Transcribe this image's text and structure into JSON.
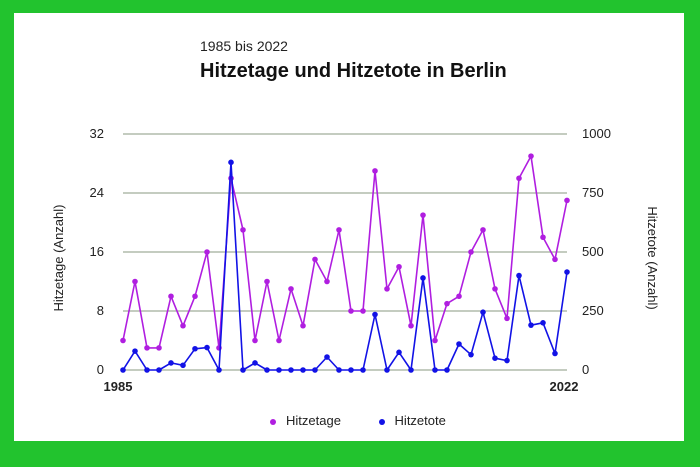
{
  "subtitle": "1985 bis 2022",
  "title": "Hitzetage und Hitzetote in Berlin",
  "colors": {
    "frame": "#22c32e",
    "hitzetage": "#b01ee0",
    "hitzetote": "#1212e6",
    "grid": "#8a9a80"
  },
  "chart_data": {
    "type": "line",
    "x": [
      1985,
      1986,
      1987,
      1988,
      1989,
      1990,
      1991,
      1992,
      1993,
      1994,
      1995,
      1996,
      1997,
      1998,
      1999,
      2000,
      2001,
      2002,
      2003,
      2004,
      2005,
      2006,
      2007,
      2008,
      2009,
      2010,
      2011,
      2012,
      2013,
      2014,
      2015,
      2016,
      2017,
      2018,
      2019,
      2020,
      2021,
      2022
    ],
    "x_tick_labels": [
      "1985",
      "2022"
    ],
    "y_left": {
      "label": "Hitzetage (Anzahl)",
      "range": [
        0,
        32
      ],
      "ticks": [
        "0",
        "8",
        "16",
        "24",
        "32"
      ]
    },
    "y_right": {
      "label": "Hitzetote (Anzahl)",
      "range": [
        0,
        1000
      ],
      "ticks": [
        "0",
        "250",
        "500",
        "750",
        "1000"
      ]
    },
    "grid": true,
    "legend_position": "bottom",
    "series": [
      {
        "name": "Hitzetage",
        "axis": "left",
        "color": "#b01ee0",
        "values": [
          4,
          12,
          3,
          3,
          10,
          6,
          10,
          16,
          3,
          26,
          19,
          4,
          12,
          4,
          11,
          6,
          15,
          12,
          19,
          8,
          8,
          27,
          11,
          14,
          6,
          21,
          4,
          9,
          10,
          16,
          19,
          11,
          7,
          26,
          29,
          18,
          15,
          23
        ]
      },
      {
        "name": "Hitzetote",
        "axis": "right",
        "color": "#1212e6",
        "values": [
          0,
          80,
          0,
          0,
          30,
          20,
          90,
          95,
          0,
          880,
          0,
          30,
          0,
          0,
          0,
          0,
          0,
          55,
          0,
          0,
          0,
          235,
          0,
          75,
          0,
          390,
          0,
          0,
          110,
          65,
          245,
          50,
          40,
          400,
          190,
          200,
          70,
          415
        ]
      }
    ]
  }
}
